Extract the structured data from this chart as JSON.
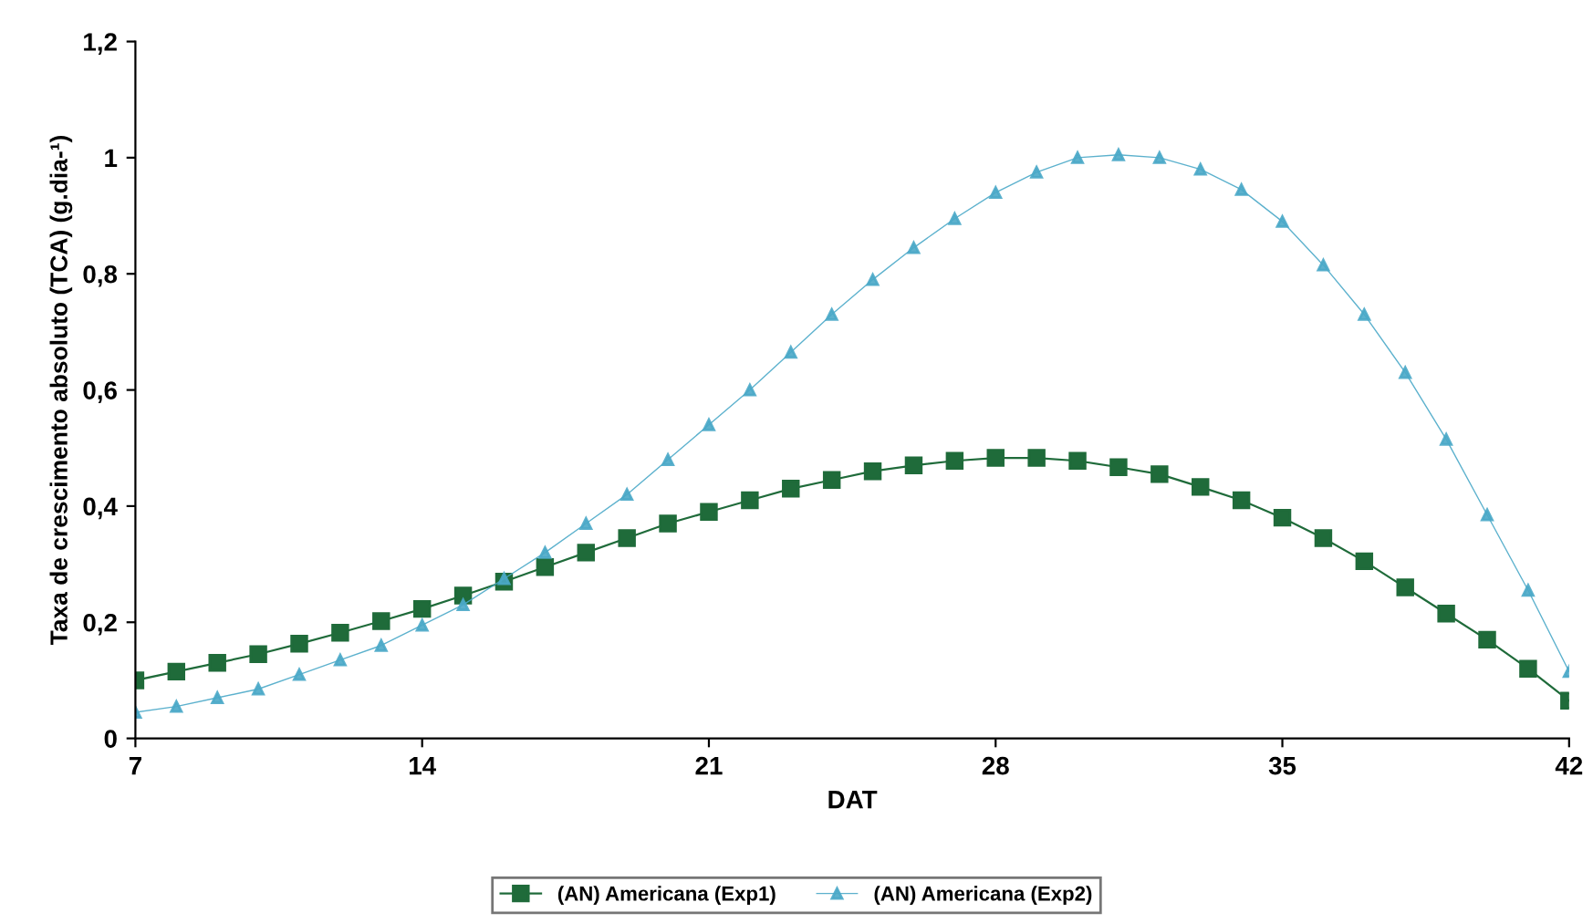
{
  "chart_data": {
    "type": "line",
    "xlabel": "DAT",
    "ylabel": "Taxa de crescimento absoluto (TCA) (g.dia-¹)",
    "x": [
      7,
      8,
      9,
      10,
      11,
      12,
      13,
      14,
      15,
      16,
      17,
      18,
      19,
      20,
      21,
      22,
      23,
      24,
      25,
      26,
      27,
      28,
      29,
      30,
      31,
      32,
      33,
      34,
      35,
      36,
      37,
      38,
      39,
      40,
      41,
      42
    ],
    "series": [
      {
        "name": "(AN) Americana (Exp1)",
        "color": "#1f6b3a",
        "marker": "square",
        "line_style": "solid",
        "values": [
          0.1,
          0.115,
          0.13,
          0.145,
          0.163,
          0.182,
          0.202,
          0.223,
          0.246,
          0.27,
          0.295,
          0.32,
          0.345,
          0.37,
          0.39,
          0.41,
          0.43,
          0.445,
          0.46,
          0.47,
          0.478,
          0.483,
          0.483,
          0.478,
          0.467,
          0.455,
          0.433,
          0.41,
          0.38,
          0.345,
          0.305,
          0.26,
          0.215,
          0.17,
          0.12,
          0.065
        ]
      },
      {
        "name": "(AN) Americana (Exp2)",
        "color": "#4aa8c8",
        "marker": "triangle",
        "line_style": "solid",
        "values": [
          0.045,
          0.055,
          0.07,
          0.085,
          0.11,
          0.135,
          0.16,
          0.195,
          0.23,
          0.275,
          0.32,
          0.37,
          0.42,
          0.48,
          0.54,
          0.6,
          0.665,
          0.73,
          0.79,
          0.845,
          0.895,
          0.94,
          0.975,
          1.0,
          1.005,
          1.0,
          0.98,
          0.945,
          0.89,
          0.815,
          0.73,
          0.63,
          0.515,
          0.385,
          0.255,
          0.115
        ]
      }
    ],
    "xlim": [
      7,
      42
    ],
    "xticks": [
      7,
      14,
      21,
      28,
      35,
      42
    ],
    "ylim": [
      0,
      1.2
    ],
    "yticks": [
      0,
      {
        "value": 0.2,
        "label": "0,2"
      },
      {
        "value": 0.4,
        "label": "0,4"
      },
      {
        "value": 0.6,
        "label": "0,6"
      },
      {
        "value": 0.8,
        "label": "0,8"
      },
      1,
      {
        "value": 1.2,
        "label": "1,2"
      }
    ],
    "grid": false,
    "legend": "bottom"
  }
}
